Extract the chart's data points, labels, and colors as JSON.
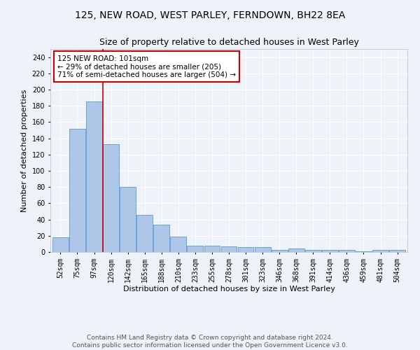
{
  "title": "125, NEW ROAD, WEST PARLEY, FERNDOWN, BH22 8EA",
  "subtitle": "Size of property relative to detached houses in West Parley",
  "xlabel": "Distribution of detached houses by size in West Parley",
  "ylabel": "Number of detached properties",
  "categories": [
    "52sqm",
    "75sqm",
    "97sqm",
    "120sqm",
    "142sqm",
    "165sqm",
    "188sqm",
    "210sqm",
    "233sqm",
    "255sqm",
    "278sqm",
    "301sqm",
    "323sqm",
    "346sqm",
    "368sqm",
    "391sqm",
    "414sqm",
    "436sqm",
    "459sqm",
    "481sqm",
    "504sqm"
  ],
  "values": [
    18,
    152,
    185,
    133,
    80,
    46,
    34,
    19,
    8,
    8,
    7,
    6,
    6,
    3,
    4,
    3,
    3,
    3,
    1,
    3,
    3
  ],
  "bar_color": "#aec6e8",
  "bar_edge_color": "#5b9bd5",
  "red_line_x": 2.5,
  "annotation_text": "125 NEW ROAD: 101sqm\n← 29% of detached houses are smaller (205)\n71% of semi-detached houses are larger (504) →",
  "annotation_box_color": "#ffffff",
  "annotation_box_edge_color": "#cc0000",
  "red_line_color": "#cc0000",
  "ylim": [
    0,
    250
  ],
  "yticks": [
    0,
    20,
    40,
    60,
    80,
    100,
    120,
    140,
    160,
    180,
    200,
    220,
    240
  ],
  "background_color": "#eef2f9",
  "grid_color": "#ffffff",
  "footer": "Contains HM Land Registry data © Crown copyright and database right 2024.\nContains public sector information licensed under the Open Government Licence v3.0.",
  "title_fontsize": 10,
  "subtitle_fontsize": 9,
  "axis_label_fontsize": 8,
  "tick_fontsize": 7,
  "annotation_fontsize": 7.5,
  "footer_fontsize": 6.5
}
